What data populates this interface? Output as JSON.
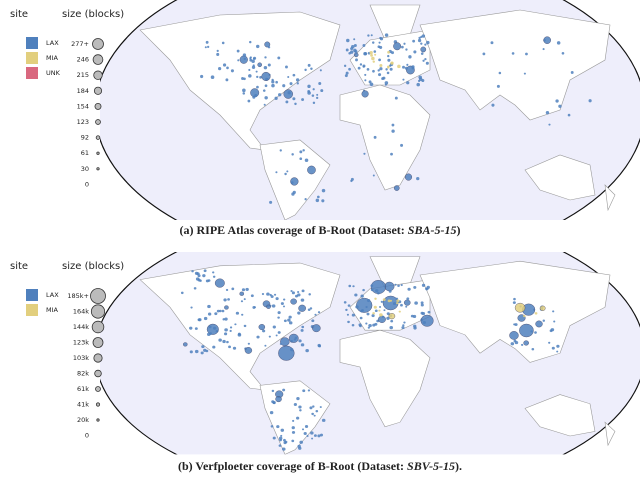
{
  "figures": [
    {
      "legend": {
        "site_title": "site",
        "size_title": "size (blocks)",
        "sites": [
          "LAX",
          "MIA",
          "UNK"
        ],
        "sizes": [
          "277+",
          "246",
          "215",
          "184",
          "154",
          "123",
          "92",
          "61",
          "30",
          "0"
        ]
      },
      "caption": {
        "label": "(a) RIPE Atlas coverage of B-Root (Dataset: ",
        "dataset": "SBA-5-15",
        "end": ")"
      }
    },
    {
      "legend": {
        "site_title": "site",
        "size_title": "size (blocks)",
        "sites": [
          "LAX",
          "MIA"
        ],
        "sizes": [
          "185k+",
          "164k",
          "144k",
          "123k",
          "103k",
          "82k",
          "61k",
          "41k",
          "20k",
          "0"
        ]
      },
      "caption": {
        "label": "(b) Verfploeter coverage of B-Root (Dataset: ",
        "dataset": "SBV-5-15",
        "end": ")."
      }
    }
  ]
}
